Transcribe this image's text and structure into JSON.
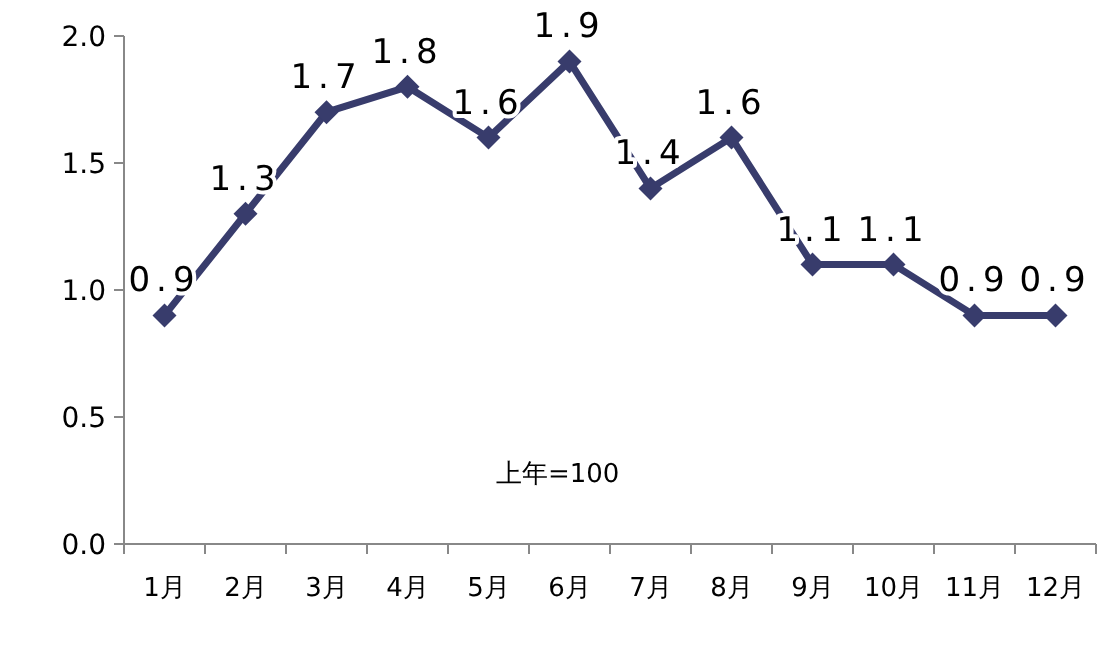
{
  "chart_data": {
    "type": "line",
    "categories": [
      "1月",
      "2月",
      "3月",
      "4月",
      "5月",
      "6月",
      "7月",
      "8月",
      "9月",
      "10月",
      "11月",
      "12月"
    ],
    "series": [
      {
        "color": "#383c6c",
        "values": [
          0.9,
          1.3,
          1.7,
          1.8,
          1.6,
          1.9,
          1.4,
          1.6,
          1.1,
          1.1,
          0.9,
          0.9
        ]
      }
    ],
    "ylim": [
      0,
      2
    ],
    "yticks": [
      {
        "value": 0,
        "label": "0.0"
      },
      0.5,
      {
        "value": 1,
        "label": "1.0"
      },
      1.5,
      {
        "value": 2,
        "label": "2.0"
      }
    ],
    "marker": "diamond",
    "line_style": "solid",
    "grid": false,
    "data_labels": true,
    "annotations": [
      "上年=100"
    ]
  }
}
